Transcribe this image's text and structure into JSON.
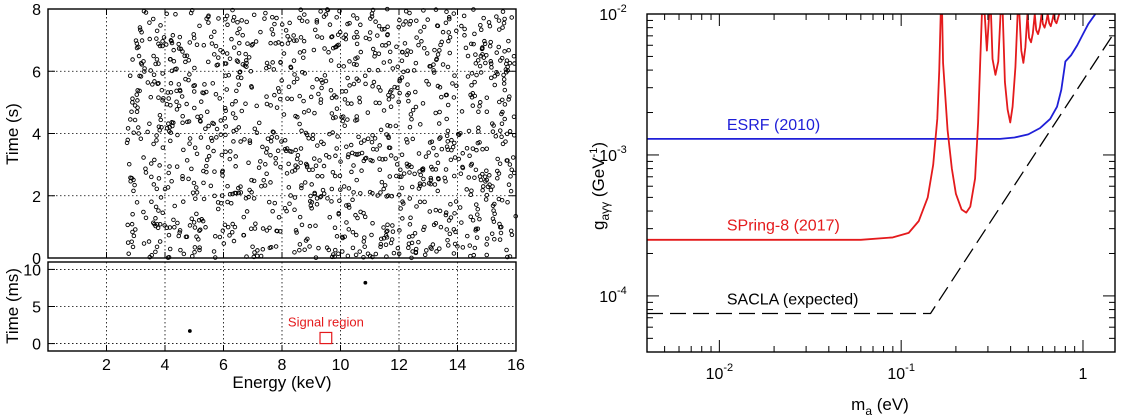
{
  "chart_data": [
    {
      "type": "scatter",
      "panel": "upper-left",
      "xlim": [
        0,
        16
      ],
      "ylim": [
        0,
        8
      ],
      "ylabel": "Time (s)",
      "xticks": [
        2,
        4,
        6,
        8,
        10,
        12,
        14,
        16
      ],
      "yticks": [
        0,
        2,
        4,
        6,
        8
      ],
      "grid": true,
      "marker": "hollow-circle",
      "point_cloud": {
        "x_range": [
          2.7,
          16.0
        ],
        "y_range": [
          0,
          8
        ],
        "approx_count": 1300,
        "distribution": "uniform"
      }
    },
    {
      "type": "scatter",
      "panel": "lower-left",
      "xlim": [
        0,
        16
      ],
      "ylim": [
        -1,
        11
      ],
      "xlabel": "Energy (keV)",
      "ylabel": "Time (ms)",
      "xticks": [
        2,
        4,
        6,
        8,
        10,
        12,
        14,
        16
      ],
      "yticks": [
        0,
        5,
        10
      ],
      "grid": true,
      "points": [
        [
          4.85,
          1.7
        ],
        [
          10.85,
          8.2
        ]
      ],
      "signal_region": {
        "label": "Signal region",
        "x": [
          9.3,
          9.7
        ],
        "y": [
          0,
          1.5
        ],
        "color": "#e41a1c"
      }
    },
    {
      "type": "line",
      "panel": "right",
      "xscale": "log",
      "yscale": "log",
      "xlim": [
        0.004,
        1.5
      ],
      "ylim": [
        4e-05,
        0.01
      ],
      "xlabel_main": "m",
      "xlabel_sub": "a",
      "xlabel_rest": " (eV)",
      "ylabel_main": "g",
      "ylabel_sub": "aγγ",
      "ylabel_unit": "(GeV",
      "ylabel_exp": "-1",
      "ylabel_close": ")",
      "xticks": [
        {
          "base": "10",
          "exp": "-2",
          "value": 0.01
        },
        {
          "base": "10",
          "exp": "-1",
          "value": 0.1
        },
        {
          "base": "1",
          "exp": "",
          "value": 1
        }
      ],
      "yticks": [
        {
          "base": "10",
          "exp": "-4",
          "value": 0.0001
        },
        {
          "base": "10",
          "exp": "-3",
          "value": 0.001
        },
        {
          "base": "10",
          "exp": "-2",
          "value": 0.01
        }
      ],
      "series": [
        {
          "name": "ESRF (2010)",
          "color": "#1f1fd8",
          "points": [
            [
              0.004,
              0.0013
            ],
            [
              0.35,
              0.0013
            ],
            [
              0.42,
              0.00133
            ],
            [
              0.5,
              0.0014
            ],
            [
              0.58,
              0.00155
            ],
            [
              0.66,
              0.0018
            ],
            [
              0.72,
              0.0022
            ],
            [
              0.76,
              0.0029
            ],
            [
              0.79,
              0.0041
            ],
            [
              0.8,
              0.0046
            ],
            [
              0.86,
              0.0051
            ],
            [
              0.93,
              0.006
            ],
            [
              1.0,
              0.0072
            ],
            [
              1.07,
              0.0085
            ],
            [
              1.17,
              0.01
            ]
          ]
        },
        {
          "name": "SPring-8 (2017)",
          "color": "#e41a1c",
          "points": [
            [
              0.004,
              0.00025
            ],
            [
              0.06,
              0.00025
            ],
            [
              0.09,
              0.00026
            ],
            [
              0.11,
              0.00028
            ],
            [
              0.125,
              0.00034
            ],
            [
              0.14,
              0.0005
            ],
            [
              0.15,
              0.00085
            ],
            [
              0.158,
              0.0018
            ],
            [
              0.162,
              0.004
            ],
            [
              0.165,
              0.01
            ],
            [
              0.168,
              0.01
            ],
            [
              0.17,
              0.0045
            ],
            [
              0.18,
              0.0015
            ],
            [
              0.19,
              0.0008
            ],
            [
              0.2,
              0.00053
            ],
            [
              0.215,
              0.00041
            ],
            [
              0.228,
              0.00039
            ],
            [
              0.24,
              0.00043
            ],
            [
              0.255,
              0.00068
            ],
            [
              0.265,
              0.0017
            ],
            [
              0.272,
              0.0045
            ],
            [
              0.278,
              0.01
            ],
            [
              0.288,
              0.01
            ],
            [
              0.296,
              0.0055
            ],
            [
              0.305,
              0.01
            ],
            [
              0.312,
              0.01
            ],
            [
              0.318,
              0.0048
            ],
            [
              0.33,
              0.0037
            ],
            [
              0.342,
              0.0046
            ],
            [
              0.352,
              0.01
            ],
            [
              0.362,
              0.01
            ],
            [
              0.372,
              0.0033
            ],
            [
              0.385,
              0.0021
            ],
            [
              0.398,
              0.0017
            ],
            [
              0.41,
              0.0022
            ],
            [
              0.425,
              0.0042
            ],
            [
              0.437,
              0.01
            ],
            [
              0.447,
              0.01
            ],
            [
              0.458,
              0.0055
            ],
            [
              0.47,
              0.0045
            ],
            [
              0.482,
              0.0058
            ],
            [
              0.495,
              0.01
            ],
            [
              0.505,
              0.0068
            ],
            [
              0.518,
              0.0063
            ],
            [
              0.53,
              0.0073
            ],
            [
              0.543,
              0.01
            ],
            [
              0.553,
              0.0077
            ],
            [
              0.566,
              0.0072
            ],
            [
              0.58,
              0.0081
            ],
            [
              0.592,
              0.01
            ],
            [
              0.602,
              0.0085
            ],
            [
              0.615,
              0.008
            ],
            [
              0.628,
              0.0088
            ],
            [
              0.64,
              0.01
            ],
            [
              0.652,
              0.0086
            ],
            [
              0.665,
              0.0082
            ],
            [
              0.678,
              0.009
            ],
            [
              0.69,
              0.01
            ],
            [
              0.702,
              0.0089
            ],
            [
              0.715,
              0.0086
            ],
            [
              0.728,
              0.0093
            ],
            [
              0.74,
              0.01
            ]
          ]
        },
        {
          "name": "SACLA (expected)",
          "color": "#000000",
          "dashed": true,
          "points": [
            [
              0.004,
              7.5e-05
            ],
            [
              0.145,
              7.5e-05
            ],
            [
              1.5,
              0.0075
            ]
          ]
        }
      ],
      "labels": [
        {
          "text": "ESRF (2010)",
          "color": "#1f1fd8",
          "x": 0.011,
          "y": 0.0015
        },
        {
          "text": "SPring-8 (2017)",
          "color": "#e41a1c",
          "x": 0.011,
          "y": 0.00029
        },
        {
          "text": "SACLA (expected)",
          "color": "#000000",
          "x": 0.011,
          "y": 8.7e-05
        }
      ]
    }
  ]
}
